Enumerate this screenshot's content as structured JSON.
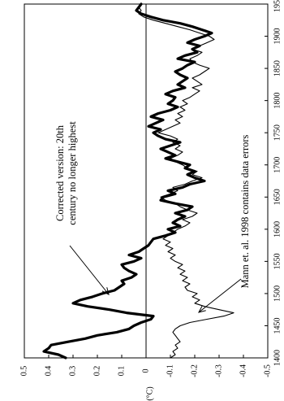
{
  "chart_data": {
    "type": "line",
    "orientation": "rotated-90",
    "title": "",
    "xlabel": "",
    "ylabel": "(°C)",
    "xlim": [
      1400,
      1950
    ],
    "ylim": [
      -0.5,
      0.5
    ],
    "x_ticks": [
      1400,
      1450,
      1500,
      1550,
      1600,
      1650,
      1700,
      1750,
      1800,
      1850,
      1900,
      1950
    ],
    "y_ticks": [
      0.5,
      0.4,
      0.3,
      0.2,
      0.1,
      0,
      -0.1,
      -0.2,
      -0.3,
      -0.4,
      -0.5
    ],
    "grid": false,
    "series": [
      {
        "name": "",
        "style": "thick",
        "color": "#000000",
        "x": [
          1400,
          1405,
          1410,
          1415,
          1420,
          1425,
          1430,
          1435,
          1440,
          1445,
          1450,
          1455,
          1460,
          1465,
          1470,
          1475,
          1480,
          1485,
          1490,
          1495,
          1500,
          1505,
          1510,
          1515,
          1520,
          1525,
          1530,
          1535,
          1540,
          1545,
          1550,
          1555,
          1560,
          1565,
          1570,
          1575,
          1580,
          1585,
          1590,
          1595,
          1600,
          1605,
          1610,
          1615,
          1620,
          1625,
          1630,
          1635,
          1640,
          1645,
          1650,
          1655,
          1660,
          1665,
          1670,
          1675,
          1680,
          1685,
          1690,
          1695,
          1700,
          1705,
          1710,
          1715,
          1720,
          1725,
          1730,
          1735,
          1740,
          1745,
          1750,
          1755,
          1760,
          1765,
          1770,
          1775,
          1780,
          1785,
          1790,
          1795,
          1800,
          1805,
          1810,
          1815,
          1820,
          1825,
          1830,
          1835,
          1840,
          1845,
          1850,
          1855,
          1860,
          1865,
          1870,
          1875,
          1880,
          1885,
          1890,
          1895,
          1900,
          1905,
          1910,
          1915,
          1920,
          1925,
          1930,
          1935,
          1940,
          1945,
          1950
        ],
        "y": [
          0.33,
          0.36,
          0.42,
          0.4,
          0.39,
          0.32,
          0.25,
          0.2,
          0.12,
          0.07,
          0.05,
          0.02,
          -0.02,
          -0.03,
          0.08,
          0.15,
          0.24,
          0.3,
          0.27,
          0.22,
          0.18,
          0.13,
          0.11,
          0.09,
          0.1,
          0.06,
          0.04,
          0.07,
          0.09,
          0.1,
          0.05,
          0.02,
          0.07,
          0.03,
          0.01,
          -0.01,
          -0.02,
          -0.03,
          -0.08,
          -0.12,
          -0.09,
          -0.14,
          -0.11,
          -0.13,
          -0.16,
          -0.12,
          -0.17,
          -0.19,
          -0.12,
          -0.06,
          -0.07,
          -0.12,
          -0.09,
          -0.15,
          -0.18,
          -0.24,
          -0.2,
          -0.17,
          -0.2,
          -0.16,
          -0.18,
          -0.13,
          -0.08,
          -0.12,
          -0.09,
          -0.06,
          -0.1,
          -0.14,
          -0.08,
          -0.05,
          -0.03,
          -0.06,
          -0.01,
          -0.04,
          -0.07,
          -0.02,
          -0.05,
          -0.1,
          -0.13,
          -0.09,
          -0.11,
          -0.12,
          -0.08,
          -0.11,
          -0.16,
          -0.13,
          -0.15,
          -0.17,
          -0.14,
          -0.12,
          -0.15,
          -0.17,
          -0.2,
          -0.13,
          -0.16,
          -0.21,
          -0.19,
          -0.22,
          -0.17,
          -0.2,
          -0.24,
          -0.27,
          -0.23,
          -0.19,
          -0.14,
          -0.07,
          -0.02,
          0.02,
          0.04,
          0.03,
          0.02
        ]
      },
      {
        "name": "",
        "style": "thin",
        "color": "#000000",
        "x": [
          1400,
          1405,
          1410,
          1415,
          1420,
          1425,
          1430,
          1435,
          1440,
          1445,
          1450,
          1455,
          1460,
          1465,
          1470,
          1475,
          1480,
          1485,
          1490,
          1495,
          1500,
          1505,
          1510,
          1515,
          1520,
          1525,
          1530,
          1535,
          1540,
          1545,
          1550,
          1555,
          1560,
          1565,
          1570,
          1575,
          1580,
          1585,
          1590,
          1595,
          1600,
          1605,
          1610,
          1615,
          1620,
          1625,
          1630,
          1635,
          1640,
          1645,
          1650,
          1655,
          1660,
          1665,
          1670,
          1675,
          1680,
          1685,
          1690,
          1695,
          1700,
          1705,
          1710,
          1715,
          1720,
          1725,
          1730,
          1735,
          1740,
          1745,
          1750,
          1755,
          1760,
          1765,
          1770,
          1775,
          1780,
          1785,
          1790,
          1795,
          1800,
          1805,
          1810,
          1815,
          1820,
          1825,
          1830,
          1835,
          1840,
          1845,
          1850,
          1855,
          1860,
          1865,
          1870,
          1875,
          1880,
          1885,
          1890,
          1895,
          1900,
          1905,
          1910,
          1915,
          1920,
          1925,
          1930,
          1935,
          1940,
          1945,
          1950
        ],
        "y": [
          -0.1,
          -0.12,
          -0.11,
          -0.13,
          -0.12,
          -0.14,
          -0.13,
          -0.12,
          -0.11,
          -0.12,
          -0.14,
          -0.18,
          -0.25,
          -0.32,
          -0.36,
          -0.3,
          -0.24,
          -0.2,
          -0.22,
          -0.19,
          -0.21,
          -0.17,
          -0.16,
          -0.18,
          -0.15,
          -0.17,
          -0.14,
          -0.16,
          -0.13,
          -0.15,
          -0.12,
          -0.1,
          -0.12,
          -0.09,
          -0.11,
          -0.08,
          -0.1,
          -0.07,
          -0.09,
          -0.11,
          -0.13,
          -0.16,
          -0.18,
          -0.15,
          -0.19,
          -0.21,
          -0.17,
          -0.14,
          -0.12,
          -0.08,
          -0.06,
          -0.1,
          -0.13,
          -0.11,
          -0.16,
          -0.19,
          -0.23,
          -0.19,
          -0.21,
          -0.17,
          -0.15,
          -0.12,
          -0.1,
          -0.13,
          -0.15,
          -0.12,
          -0.14,
          -0.11,
          -0.13,
          -0.1,
          -0.05,
          -0.08,
          -0.11,
          -0.14,
          -0.12,
          -0.15,
          -0.13,
          -0.16,
          -0.14,
          -0.17,
          -0.15,
          -0.18,
          -0.2,
          -0.22,
          -0.19,
          -0.23,
          -0.21,
          -0.19,
          -0.22,
          -0.24,
          -0.26,
          -0.22,
          -0.19,
          -0.18,
          -0.21,
          -0.23,
          -0.19,
          -0.22,
          -0.25,
          -0.28,
          -0.26,
          -0.22,
          -0.18,
          -0.13,
          -0.08,
          -0.03,
          0.01,
          0.03,
          0.02,
          0.03,
          0.02
        ]
      }
    ],
    "annotations": [
      {
        "id": "corrected",
        "lines": [
          "Corrected version: 20th",
          "century no longer highest"
        ]
      },
      {
        "id": "mann",
        "lines": [
          "Mann et. al. 1998 contains data errors"
        ]
      }
    ]
  }
}
